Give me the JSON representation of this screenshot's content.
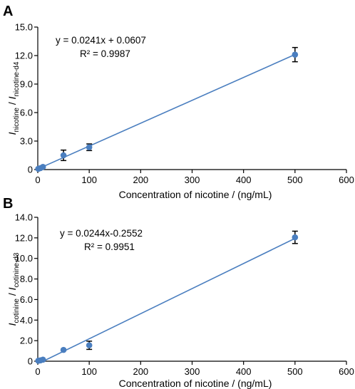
{
  "chart_data": [
    {
      "type": "scatter",
      "panel_label": "A",
      "xlabel": "Concentration of nicotine / (ng/mL)",
      "ylabel": {
        "num": "I",
        "num_sub": "nicotine",
        "sep": " / ",
        "den": "I",
        "den_sub": "nicotine-d4"
      },
      "xlim": [
        0,
        600
      ],
      "ylim": [
        0,
        15
      ],
      "xticks": [
        0,
        100,
        200,
        300,
        400,
        500,
        600
      ],
      "yticks": [
        0.0,
        3.0,
        6.0,
        9.0,
        12.0,
        15.0
      ],
      "ytick_labels": [
        "0",
        "3.0",
        "6.0",
        "9.0",
        "12.0",
        "15.0"
      ],
      "xtick_labels": [
        "0",
        "100",
        "200",
        "300",
        "400",
        "500",
        "600"
      ],
      "equation": "y = 0.0241x + 0.0607",
      "r2": "R² = 0.9987",
      "fit": {
        "slope": 0.0241,
        "intercept": 0.0607,
        "x_range": [
          0,
          500
        ]
      },
      "points": [
        {
          "x": 1,
          "y": 0.08,
          "err": 0.02
        },
        {
          "x": 5,
          "y": 0.15,
          "err": 0.03
        },
        {
          "x": 10,
          "y": 0.28,
          "err": 0.04
        },
        {
          "x": 50,
          "y": 1.5,
          "err": 0.55
        },
        {
          "x": 100,
          "y": 2.35,
          "err": 0.35
        },
        {
          "x": 500,
          "y": 12.1,
          "err": 0.75
        }
      ],
      "color": "#4a7ebf"
    },
    {
      "type": "scatter",
      "panel_label": "B",
      "xlabel": "Concentration of nicotine / (ng/mL)",
      "ylabel": {
        "num": "I",
        "num_sub": "cotinine",
        "sep": " / ",
        "den": "I",
        "den_sub": "cotinine-d3"
      },
      "xlim": [
        0,
        600
      ],
      "ylim": [
        0,
        14
      ],
      "xticks": [
        0,
        100,
        200,
        300,
        400,
        500,
        600
      ],
      "yticks": [
        0,
        2,
        4,
        6,
        8,
        10,
        12,
        14
      ],
      "ytick_labels": [
        "0",
        "2.0",
        "4.0",
        "6.0",
        "8.0",
        "10.0",
        "12.0",
        "14.0"
      ],
      "xtick_labels": [
        "0",
        "100",
        "200",
        "300",
        "400",
        "500",
        "600"
      ],
      "equation": "y = 0.0244x-0.2552",
      "r2": "R² = 0.9951",
      "fit": {
        "slope": 0.0244,
        "intercept": -0.2552,
        "x_range": [
          10.46,
          500
        ]
      },
      "points": [
        {
          "x": 1,
          "y": 0.05,
          "err": 0.02
        },
        {
          "x": 5,
          "y": 0.08,
          "err": 0.03
        },
        {
          "x": 10,
          "y": 0.15,
          "err": 0.04
        },
        {
          "x": 50,
          "y": 1.1,
          "err": 0.08
        },
        {
          "x": 100,
          "y": 1.55,
          "err": 0.4
        },
        {
          "x": 500,
          "y": 12.05,
          "err": 0.6
        }
      ],
      "color": "#4a7ebf"
    }
  ]
}
